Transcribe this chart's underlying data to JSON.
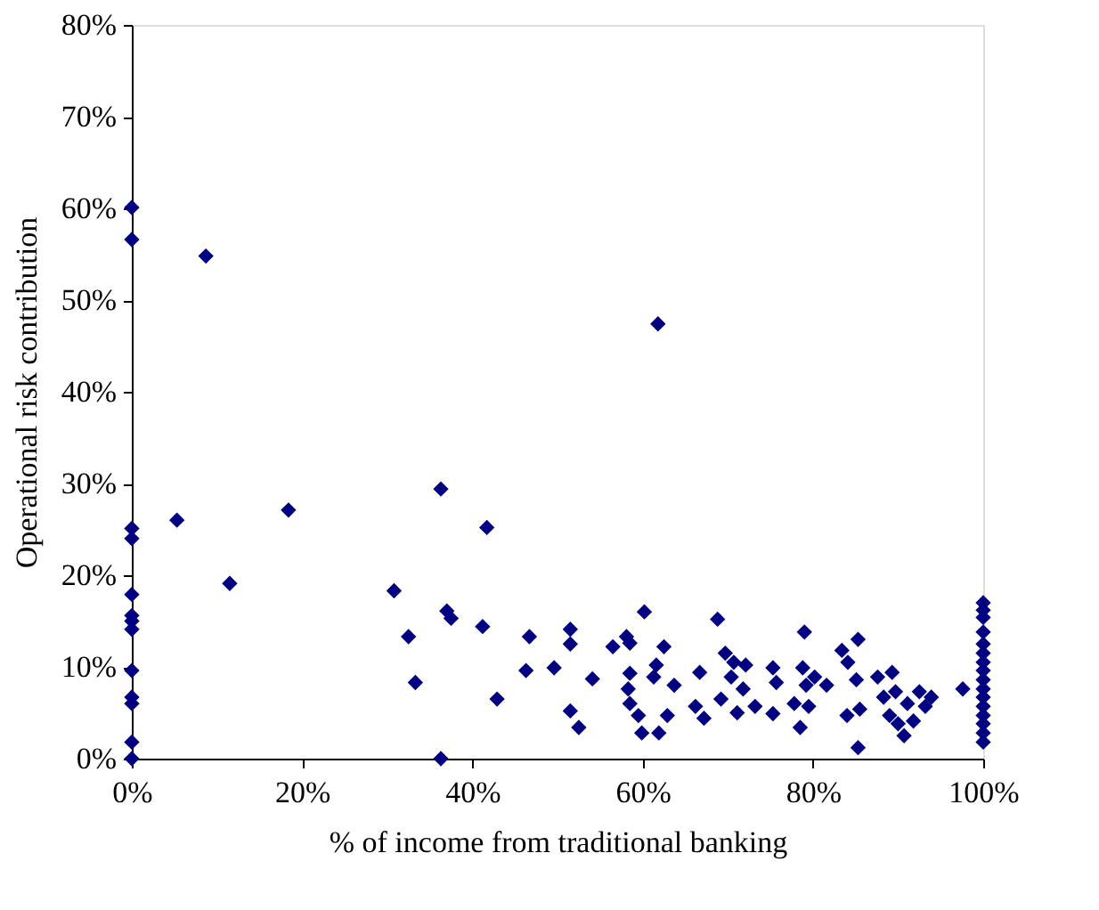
{
  "chart_data": {
    "type": "scatter",
    "xlabel": "% of income from traditional banking",
    "ylabel": "Operational risk contribution",
    "xlim": [
      0,
      100
    ],
    "ylim": [
      0,
      80
    ],
    "xticks": [
      {
        "value": 0,
        "label": "0%"
      },
      {
        "value": 20,
        "label": "20%"
      },
      {
        "value": 40,
        "label": "40%"
      },
      {
        "value": 60,
        "label": "60%"
      },
      {
        "value": 80,
        "label": "80%"
      },
      {
        "value": 100,
        "label": "100%"
      }
    ],
    "yticks": [
      {
        "value": 0,
        "label": "0%"
      },
      {
        "value": 10,
        "label": "10%"
      },
      {
        "value": 20,
        "label": "20%"
      },
      {
        "value": 30,
        "label": "30%"
      },
      {
        "value": 40,
        "label": "40%"
      },
      {
        "value": 50,
        "label": "50%"
      },
      {
        "value": 60,
        "label": "60%"
      },
      {
        "value": 70,
        "label": "70%"
      },
      {
        "value": 80,
        "label": "80%"
      }
    ],
    "grid": false,
    "marker": "diamond",
    "series": [
      {
        "color": "#000080",
        "x": [
          0,
          0,
          0,
          0,
          0,
          0,
          0,
          0,
          0,
          0,
          0,
          0,
          0,
          8.7,
          5.3,
          18.4,
          11.5,
          36.3,
          41.7,
          30.8,
          32.5,
          33.3,
          37.0,
          37.5,
          41.2,
          46.7,
          46.3,
          49.6,
          42.9,
          36.3,
          51.5,
          51.5,
          51.5,
          61.8,
          52.5,
          54.1,
          56.5,
          58.1,
          58.5,
          60.2,
          62.5,
          58.5,
          58.3,
          58.5,
          59.5,
          59.9,
          61.6,
          61.3,
          63.7,
          62.9,
          61.9,
          66.7,
          66.2,
          67.2,
          68.8,
          69.2,
          69.7,
          70.7,
          72.1,
          70.4,
          71.8,
          71.1,
          73.2,
          75.3,
          75.7,
          75.3,
          77.8,
          79.0,
          78.8,
          80.2,
          81.6,
          79.2,
          78.5,
          79.5,
          83.4,
          85.3,
          84.1,
          85.1,
          84.0,
          85.5,
          85.3,
          87.6,
          89.3,
          88.3,
          89.7,
          89.0,
          90.7,
          91.1,
          92.5,
          93.2,
          91.8,
          90.0,
          93.9,
          97.6,
          100,
          100,
          100,
          100,
          100,
          100,
          100,
          100,
          100,
          100,
          100,
          100,
          100,
          100,
          100,
          100
        ],
        "values": [
          60.1,
          56.6,
          25.1,
          24.0,
          17.9,
          15.6,
          15.0,
          14.1,
          9.6,
          6.7,
          6.0,
          1.8,
          0,
          54.8,
          26.0,
          27.1,
          19.1,
          29.4,
          25.2,
          18.3,
          13.3,
          8.3,
          16.1,
          15.3,
          14.4,
          13.3,
          9.6,
          9.9,
          6.5,
          0,
          14.1,
          12.5,
          5.2,
          47.4,
          3.4,
          8.7,
          12.2,
          13.3,
          12.6,
          16.0,
          12.2,
          9.3,
          7.6,
          6.0,
          4.7,
          2.8,
          10.2,
          8.9,
          8.0,
          4.7,
          2.8,
          9.4,
          5.7,
          4.4,
          15.2,
          6.5,
          11.5,
          10.5,
          10.2,
          8.9,
          7.6,
          5.0,
          5.7,
          9.9,
          8.3,
          4.9,
          6.0,
          13.8,
          9.9,
          8.9,
          8.0,
          8.0,
          3.4,
          5.7,
          11.8,
          13.0,
          10.5,
          8.6,
          4.7,
          5.4,
          1.2,
          8.9,
          9.4,
          6.7,
          7.3,
          4.7,
          2.5,
          6.0,
          7.3,
          5.7,
          4.1,
          3.8,
          6.7,
          7.6,
          17.0,
          16.2,
          15.4,
          13.8,
          12.5,
          11.5,
          10.5,
          9.6,
          8.6,
          7.6,
          6.7,
          5.7,
          4.7,
          3.8,
          2.8,
          1.8
        ]
      }
    ]
  }
}
